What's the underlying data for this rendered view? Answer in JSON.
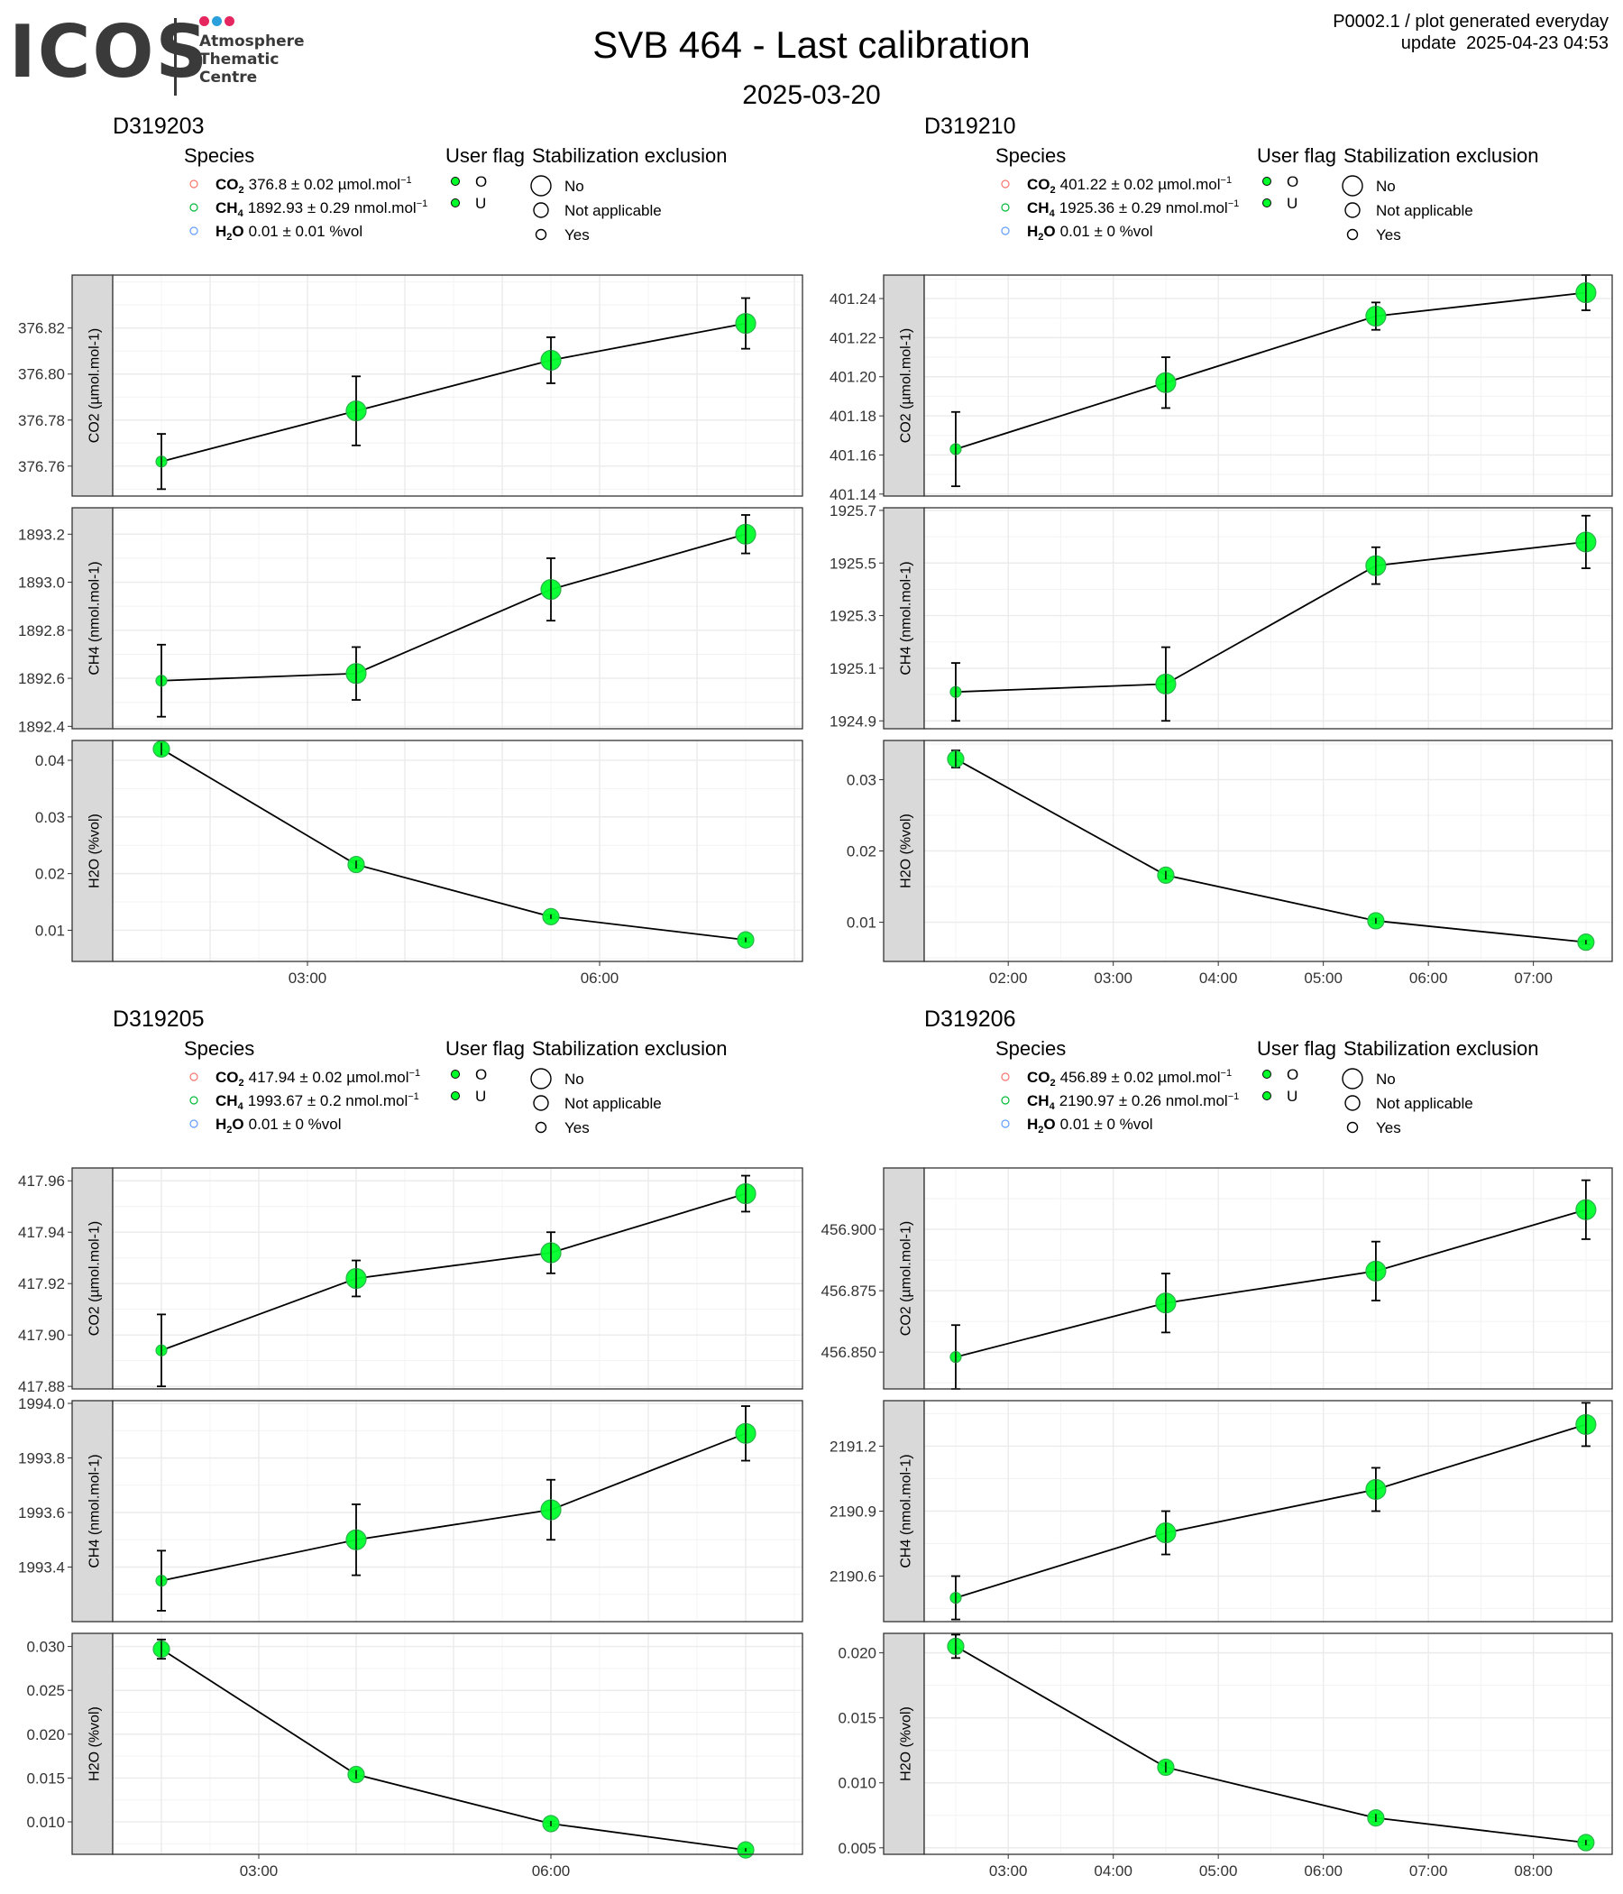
{
  "header": {
    "logo": {
      "wordmark": "ICOS",
      "lines": [
        "Atmosphere",
        "Thematic",
        "Centre"
      ],
      "dot_colors": [
        "#e6265f",
        "#2aa0dc",
        "#e6265f"
      ],
      "text_color": "#3a3a3a"
    },
    "title": "SVB 464 - Last calibration",
    "subtitle": "2025-03-20",
    "meta_line1": "P0002.1 / plot generated everyday",
    "meta_line2": "update  2025-04-23 04:53"
  },
  "legend": {
    "species_title": "Species",
    "user_flag_title": "User flag",
    "stabilization_title": "Stabilization exclusion",
    "user_flags": [
      "O",
      "U"
    ],
    "stabilization_items": [
      "No",
      "Not applicable",
      "Yes"
    ],
    "species_colors": {
      "CO2": "#f8766d",
      "CH4": "#00ba38",
      "H2O": "#619cff"
    }
  },
  "style": {
    "point_color": "#00ff2a",
    "point_outline": "#2bb24c",
    "line_color": "#000000",
    "strip_fill": "#d9d9d9",
    "grid_color": "#ebebeb"
  },
  "chart_data": [
    {
      "type": "line",
      "instrument": "D319203",
      "legend": [
        {
          "species": "CO",
          "sub": "2",
          "text": "376.8 ± 0.02 µmol.mol",
          "sup": "−1"
        },
        {
          "species": "CH",
          "sub": "4",
          "text": "1892.93 ± 0.29 nmol.mol",
          "sup": "−1"
        },
        {
          "species": "H",
          "sub": "2",
          "species_tail": "O",
          "text": "0.01 ± 0.01 %vol",
          "sup": ""
        }
      ],
      "x": [
        "01:30",
        "03:30",
        "05:30",
        "07:30"
      ],
      "xlim": [
        "01:00",
        "08:05"
      ],
      "xticks": [
        {
          "value": "03:00",
          "label": "03:00"
        },
        {
          "value": "06:00",
          "label": "06:00"
        }
      ],
      "panels": [
        {
          "ylabel": "CO2 (µmol.mol-1)",
          "ylim": [
            376.747,
            376.843
          ],
          "yticks": [
            "376.76",
            "376.78",
            "376.80",
            "376.82"
          ],
          "values": [
            376.762,
            376.784,
            376.806,
            376.822
          ],
          "err": [
            0.012,
            0.015,
            0.01,
            0.011
          ],
          "sizes": [
            1,
            3,
            3,
            3
          ]
        },
        {
          "ylabel": "CH4 (nmol.mol-1)",
          "ylim": [
            1892.39,
            1893.31
          ],
          "yticks": [
            "1892.4",
            "1892.6",
            "1892.8",
            "1893.0",
            "1893.2"
          ],
          "values": [
            1892.59,
            1892.62,
            1892.97,
            1893.2
          ],
          "err": [
            0.15,
            0.11,
            0.13,
            0.08
          ],
          "sizes": [
            1,
            3,
            3,
            3
          ]
        },
        {
          "ylabel": "H2O (%vol)",
          "ylim": [
            0.0045,
            0.0435
          ],
          "yticks": [
            "0.01",
            "0.02",
            "0.03",
            "0.04"
          ],
          "values": [
            0.042,
            0.0216,
            0.0124,
            0.0083
          ],
          "err": [
            0.0011,
            0.0007,
            0.0004,
            0.0004
          ],
          "sizes": [
            2,
            2,
            2,
            2
          ]
        }
      ]
    },
    {
      "type": "line",
      "instrument": "D319210",
      "legend": [
        {
          "species": "CO",
          "sub": "2",
          "text": "401.22 ± 0.02 µmol.mol",
          "sup": "−1"
        },
        {
          "species": "CH",
          "sub": "4",
          "text": "1925.36 ± 0.29 nmol.mol",
          "sup": "−1"
        },
        {
          "species": "H",
          "sub": "2",
          "species_tail": "O",
          "text": "0.01 ± 0 %vol",
          "sup": ""
        }
      ],
      "x": [
        "01:30",
        "03:30",
        "05:30",
        "07:30"
      ],
      "xlim": [
        "01:12",
        "07:45"
      ],
      "xticks": [
        {
          "value": "02:00",
          "label": "02:00"
        },
        {
          "value": "03:00",
          "label": "03:00"
        },
        {
          "value": "04:00",
          "label": "04:00"
        },
        {
          "value": "05:00",
          "label": "05:00"
        },
        {
          "value": "06:00",
          "label": "06:00"
        },
        {
          "value": "07:00",
          "label": "07:00"
        }
      ],
      "panels": [
        {
          "ylabel": "CO2 (µmol.mol-1)",
          "ylim": [
            401.139,
            401.252
          ],
          "yticks": [
            "401.14",
            "401.16",
            "401.18",
            "401.20",
            "401.22",
            "401.24"
          ],
          "values": [
            401.163,
            401.197,
            401.231,
            401.243
          ],
          "err": [
            0.019,
            0.013,
            0.007,
            0.009
          ],
          "sizes": [
            1,
            3,
            3,
            3
          ]
        },
        {
          "ylabel": "CH4 (nmol.mol-1)",
          "ylim": [
            1924.87,
            1925.71
          ],
          "yticks": [
            "1924.9",
            "1925.1",
            "1925.3",
            "1925.5",
            "1925.7"
          ],
          "values": [
            1925.01,
            1925.04,
            1925.49,
            1925.58
          ],
          "err": [
            0.11,
            0.14,
            0.07,
            0.1
          ],
          "sizes": [
            1,
            3,
            3,
            3
          ]
        },
        {
          "ylabel": "H2O (%vol)",
          "ylim": [
            0.0045,
            0.0355
          ],
          "yticks": [
            "0.01",
            "0.02",
            "0.03"
          ],
          "values": [
            0.0329,
            0.0166,
            0.0102,
            0.0072
          ],
          "err": [
            0.0012,
            0.0006,
            0.0004,
            0.0003
          ],
          "sizes": [
            2,
            2,
            2,
            2
          ]
        }
      ]
    },
    {
      "type": "line",
      "instrument": "D319205",
      "legend": [
        {
          "species": "CO",
          "sub": "2",
          "text": "417.94 ± 0.02 µmol.mol",
          "sup": "−1"
        },
        {
          "species": "CH",
          "sub": "4",
          "text": "1993.67 ± 0.2 nmol.mol",
          "sup": "−1"
        },
        {
          "species": "H",
          "sub": "2",
          "species_tail": "O",
          "text": "0.01 ± 0 %vol",
          "sup": ""
        }
      ],
      "x": [
        "02:00",
        "04:00",
        "06:00",
        "08:00"
      ],
      "xlim": [
        "01:30",
        "08:35"
      ],
      "xticks": [
        {
          "value": "03:00",
          "label": "03:00"
        },
        {
          "value": "06:00",
          "label": "06:00"
        }
      ],
      "panels": [
        {
          "ylabel": "CO2 (µmol.mol-1)",
          "ylim": [
            417.879,
            417.965
          ],
          "yticks": [
            "417.88",
            "417.90",
            "417.92",
            "417.94",
            "417.96"
          ],
          "values": [
            417.894,
            417.922,
            417.932,
            417.955
          ],
          "err": [
            0.014,
            0.007,
            0.008,
            0.007
          ],
          "sizes": [
            1,
            3,
            3,
            3
          ]
        },
        {
          "ylabel": "CH4 (nmol.mol-1)",
          "ylim": [
            1993.2,
            1994.01
          ],
          "yticks": [
            "1993.4",
            "1993.6",
            "1993.8",
            "1994.0"
          ],
          "values": [
            1993.35,
            1993.5,
            1993.61,
            1993.89
          ],
          "err": [
            0.11,
            0.13,
            0.11,
            0.1
          ],
          "sizes": [
            1,
            3,
            3,
            3
          ]
        },
        {
          "ylabel": "H2O (%vol)",
          "ylim": [
            0.0063,
            0.0315
          ],
          "yticks": [
            "0.010",
            "0.015",
            "0.020",
            "0.025",
            "0.030"
          ],
          "values": [
            0.0297,
            0.0154,
            0.0098,
            0.0068
          ],
          "err": [
            0.0011,
            0.0005,
            0.0003,
            0.0002
          ],
          "sizes": [
            2,
            2,
            2,
            2
          ]
        }
      ]
    },
    {
      "type": "line",
      "instrument": "D319206",
      "legend": [
        {
          "species": "CO",
          "sub": "2",
          "text": "456.89 ± 0.02 µmol.mol",
          "sup": "−1"
        },
        {
          "species": "CH",
          "sub": "4",
          "text": "2190.97 ± 0.26 nmol.mol",
          "sup": "−1"
        },
        {
          "species": "H",
          "sub": "2",
          "species_tail": "O",
          "text": "0.01 ± 0 %vol",
          "sup": ""
        }
      ],
      "x": [
        "02:30",
        "04:30",
        "06:30",
        "08:30"
      ],
      "xlim": [
        "02:12",
        "08:45"
      ],
      "xticks": [
        {
          "value": "03:00",
          "label": "03:00"
        },
        {
          "value": "04:00",
          "label": "04:00"
        },
        {
          "value": "05:00",
          "label": "05:00"
        },
        {
          "value": "06:00",
          "label": "06:00"
        },
        {
          "value": "07:00",
          "label": "07:00"
        },
        {
          "value": "08:00",
          "label": "08:00"
        }
      ],
      "panels": [
        {
          "ylabel": "CO2 (µmol.mol-1)",
          "ylim": [
            456.835,
            456.925
          ],
          "yticks": [
            "456.850",
            "456.875",
            "456.900"
          ],
          "values": [
            456.848,
            456.87,
            456.883,
            456.908
          ],
          "err": [
            0.013,
            0.012,
            0.012,
            0.012
          ],
          "sizes": [
            1,
            3,
            3,
            3
          ]
        },
        {
          "ylabel": "CH4 (nmol.mol-1)",
          "ylim": [
            2190.39,
            2191.41
          ],
          "yticks": [
            "2190.6",
            "2190.9",
            "2191.2"
          ],
          "values": [
            2190.5,
            2190.8,
            2191.0,
            2191.3
          ],
          "err": [
            0.1,
            0.1,
            0.1,
            0.1
          ],
          "sizes": [
            1,
            3,
            3,
            3
          ]
        },
        {
          "ylabel": "H2O (%vol)",
          "ylim": [
            0.0045,
            0.0215
          ],
          "yticks": [
            "0.005",
            "0.010",
            "0.015",
            "0.020"
          ],
          "values": [
            0.0205,
            0.0112,
            0.0073,
            0.0054
          ],
          "err": [
            0.0009,
            0.0004,
            0.0003,
            0.0002
          ],
          "sizes": [
            2,
            2,
            2,
            2
          ]
        }
      ]
    }
  ]
}
